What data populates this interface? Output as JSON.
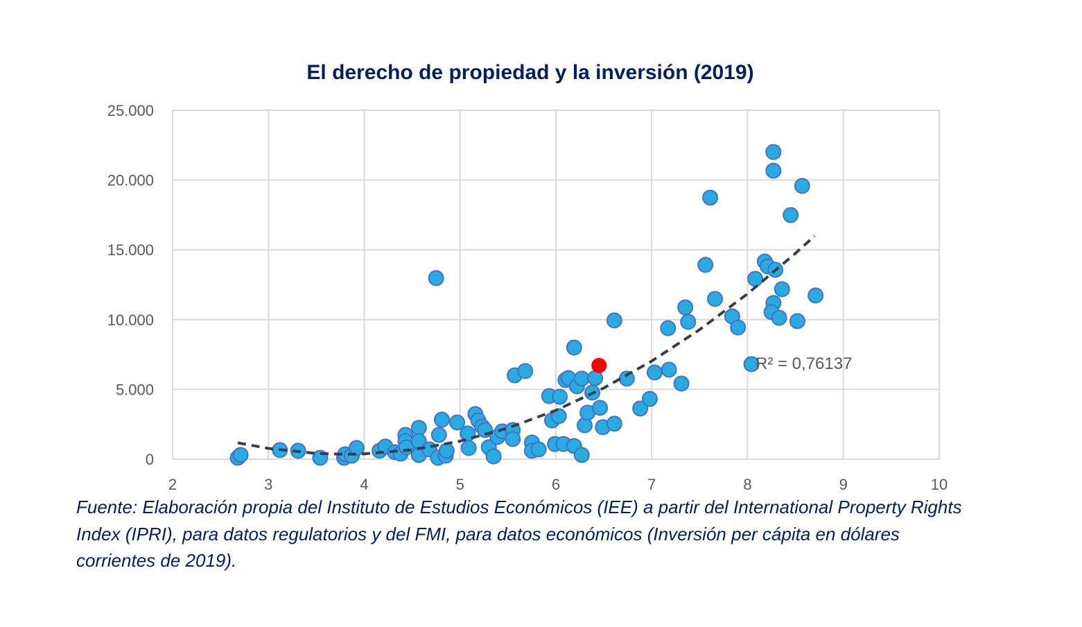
{
  "chart_data": {
    "type": "scatter",
    "title": "El derecho de propiedad y la inversión (2019)",
    "xlabel": "",
    "ylabel": "",
    "xlim": [
      2,
      10
    ],
    "ylim": [
      0,
      25000
    ],
    "x_ticks": [
      "2",
      "3",
      "4",
      "5",
      "6",
      "7",
      "8",
      "9",
      "10"
    ],
    "y_ticks": [
      "0",
      "5.000",
      "10.000",
      "15.000",
      "20.000",
      "25.000"
    ],
    "grid": true,
    "colors": {
      "points": "#29ABE2",
      "point_border": "#4472C4",
      "highlight": "#FF0000",
      "trendline": "#333F50",
      "grid": "#D9D9D9"
    },
    "points": [
      [
        2.68,
        100
      ],
      [
        2.71,
        300
      ],
      [
        3.12,
        650
      ],
      [
        3.31,
        600
      ],
      [
        3.54,
        100
      ],
      [
        3.79,
        100
      ],
      [
        3.8,
        350
      ],
      [
        3.87,
        250
      ],
      [
        3.92,
        800
      ],
      [
        4.16,
        600
      ],
      [
        4.22,
        900
      ],
      [
        4.32,
        500
      ],
      [
        4.38,
        400
      ],
      [
        4.43,
        1740
      ],
      [
        4.43,
        1290
      ],
      [
        4.44,
        850
      ],
      [
        4.57,
        2240
      ],
      [
        4.57,
        1290
      ],
      [
        4.57,
        300
      ],
      [
        4.68,
        700
      ],
      [
        4.77,
        100
      ],
      [
        4.78,
        1740
      ],
      [
        4.81,
        2830
      ],
      [
        4.85,
        250
      ],
      [
        4.86,
        600
      ],
      [
        4.97,
        2630
      ],
      [
        5.08,
        1840
      ],
      [
        5.09,
        800
      ],
      [
        5.16,
        3230
      ],
      [
        5.19,
        2780
      ],
      [
        5.23,
        2340
      ],
      [
        5.26,
        2090
      ],
      [
        5.3,
        850
      ],
      [
        5.35,
        200
      ],
      [
        5.39,
        1590
      ],
      [
        5.44,
        1990
      ],
      [
        5.55,
        2090
      ],
      [
        5.55,
        1440
      ],
      [
        5.57,
        6010
      ],
      [
        5.68,
        6310
      ],
      [
        5.75,
        1190
      ],
      [
        5.75,
        600
      ],
      [
        5.82,
        700
      ],
      [
        5.93,
        4520
      ],
      [
        5.96,
        2780
      ],
      [
        6.03,
        3080
      ],
      [
        6.04,
        4470
      ],
      [
        5.99,
        1090
      ],
      [
        6.08,
        1090
      ],
      [
        6.1,
        5670
      ],
      [
        6.13,
        5810
      ],
      [
        6.19,
        8000
      ],
      [
        6.19,
        940
      ],
      [
        6.22,
        5220
      ],
      [
        6.27,
        5770
      ],
      [
        6.27,
        300
      ],
      [
        6.3,
        2430
      ],
      [
        6.33,
        3330
      ],
      [
        6.38,
        4770
      ],
      [
        6.41,
        5810
      ],
      [
        6.46,
        3680
      ],
      [
        6.49,
        2290
      ],
      [
        6.61,
        2540
      ],
      [
        6.61,
        9940
      ],
      [
        6.74,
        5770
      ],
      [
        6.88,
        3630
      ],
      [
        6.98,
        4320
      ],
      [
        7.03,
        6210
      ],
      [
        7.17,
        9390
      ],
      [
        7.18,
        6410
      ],
      [
        7.31,
        5420
      ],
      [
        7.35,
        10880
      ],
      [
        7.38,
        9840
      ],
      [
        7.56,
        13920
      ],
      [
        7.61,
        18740
      ],
      [
        7.66,
        11480
      ],
      [
        7.84,
        10230
      ],
      [
        7.9,
        9440
      ],
      [
        8.04,
        6810
      ],
      [
        8.08,
        12920
      ],
      [
        8.18,
        14160
      ],
      [
        8.21,
        13820
      ],
      [
        8.27,
        22010
      ],
      [
        8.27,
        20670
      ],
      [
        8.27,
        11190
      ],
      [
        8.29,
        13570
      ],
      [
        8.25,
        10540
      ],
      [
        8.33,
        10130
      ],
      [
        8.36,
        12180
      ],
      [
        8.45,
        17490
      ],
      [
        8.52,
        9890
      ],
      [
        8.57,
        19580
      ],
      [
        8.71,
        11730
      ],
      [
        4.75,
        12970
      ]
    ],
    "highlight_point": [
      6.45,
      6710
    ],
    "trendline": {
      "style": "dashed",
      "points": [
        [
          2.68,
          1170
        ],
        [
          3.0,
          770
        ],
        [
          3.5,
          410
        ],
        [
          3.8,
          350
        ],
        [
          4.0,
          380
        ],
        [
          4.5,
          670
        ],
        [
          5.0,
          1290
        ],
        [
          5.5,
          2230
        ],
        [
          6.0,
          3500
        ],
        [
          6.5,
          5100
        ],
        [
          7.0,
          7030
        ],
        [
          7.5,
          9280
        ],
        [
          8.0,
          11850
        ],
        [
          8.5,
          14750
        ],
        [
          8.7,
          16000
        ]
      ],
      "label": "R² = 0,76137"
    }
  },
  "source_note": "Fuente: Elaboración propia del Instituto de Estudios Económicos (IEE) a partir del International Property Rights Index (IPRI), para datos regulatorios y del FMI, para datos económicos (Inversión per cápita en dólares corrientes de 2019)."
}
